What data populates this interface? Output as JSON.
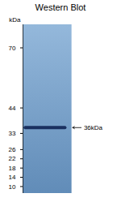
{
  "chart_data": {
    "type": "blot",
    "title": "Western Blot",
    "ylabel": "kDa",
    "ylim": [
      7,
      80
    ],
    "yticks": [
      70,
      44,
      33,
      26,
      22,
      18,
      14,
      10
    ],
    "values": [
      35.5
    ],
    "color": "#1a3060",
    "grid": false,
    "annotations": [
      {
        "text": "36kDa",
        "y": 35.5
      }
    ]
  }
}
